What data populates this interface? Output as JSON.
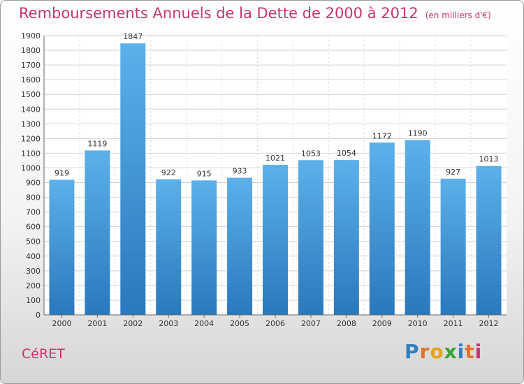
{
  "title": "Remboursements Annuels de la Dette de 2000 à 2012",
  "subtitle": "(en milliers d'€)",
  "city": "CéRET",
  "logo": {
    "letters": [
      "P",
      "r",
      "o",
      "x",
      "i",
      "t",
      "i"
    ],
    "colors": [
      "#2f7fc1",
      "#e0722a",
      "#e6a21e",
      "#3aa235",
      "#2f7fc1",
      "#e0722a",
      "#c8336f"
    ]
  },
  "chart_data": {
    "type": "bar",
    "categories": [
      "2000",
      "2001",
      "2002",
      "2003",
      "2004",
      "2005",
      "2006",
      "2007",
      "2008",
      "2009",
      "2010",
      "2011",
      "2012"
    ],
    "values": [
      919,
      1119,
      1847,
      922,
      915,
      933,
      1021,
      1053,
      1054,
      1172,
      1190,
      927,
      1013
    ],
    "yticks": [
      0,
      100,
      200,
      300,
      400,
      500,
      600,
      700,
      800,
      900,
      1000,
      1100,
      1200,
      1300,
      1400,
      1500,
      1600,
      1700,
      1800,
      1900
    ],
    "ylim": [
      0,
      1900
    ],
    "grid": true,
    "bar_color": "#4c9fdf"
  }
}
